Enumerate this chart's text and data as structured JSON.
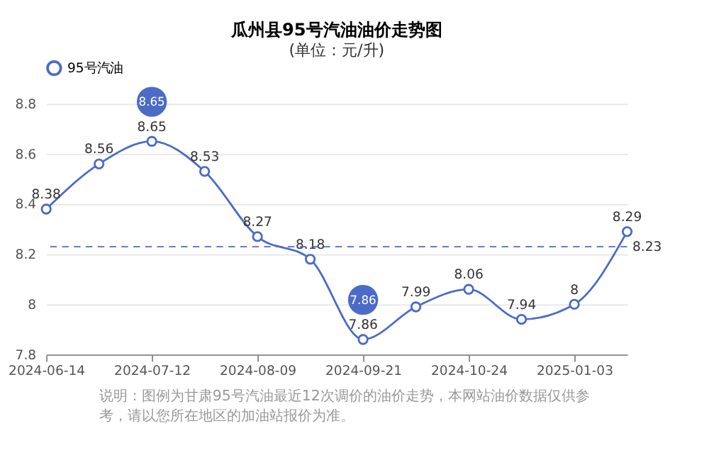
{
  "chart_data": {
    "type": "line",
    "title": "瓜州县95号汽油油价走势图",
    "subtitle": "(单位：元/升)",
    "categories": [
      "2024-06-14",
      null,
      "2024-07-12",
      null,
      "2024-08-09",
      null,
      "2024-09-21",
      null,
      "2024-10-24",
      null,
      "2025-01-03",
      null
    ],
    "series": [
      {
        "name": "95号汽油",
        "color": "#4b6bc6",
        "values": [
          8.38,
          8.56,
          8.65,
          8.53,
          8.27,
          8.18,
          7.86,
          7.99,
          8.06,
          7.94,
          8,
          8.29
        ]
      }
    ],
    "ylim": [
      7.8,
      8.8
    ],
    "yticks": [
      7.8,
      8,
      8.2,
      8.4,
      8.6,
      8.8
    ],
    "grid": "y",
    "legend": "top",
    "marker": "circle",
    "line_style": "solid",
    "data_labels": true,
    "ref_lines": [
      {
        "axis": "y",
        "value": 8.23,
        "label": "8.23",
        "color": "#4b6bc6",
        "line_style": "dashed"
      }
    ],
    "annotations": [
      {
        "text": "8.65",
        "x": "2024-07-12",
        "y": 8.65
      },
      {
        "text": "7.86",
        "x": "2024-09-21",
        "y": 7.86
      },
      "说明：图例为甘肃95号汽油最近12次调价的油价走势，本网站油价数据仅供参考，请以您所在地区的加油站报价为准。"
    ]
  }
}
